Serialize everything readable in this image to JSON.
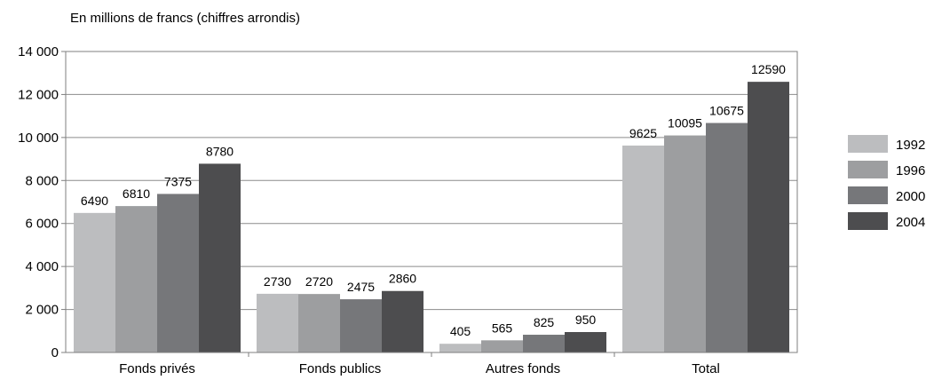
{
  "chart_data": {
    "type": "bar",
    "subtitle": "En millions de francs (chiffres arrondis)",
    "categories": [
      "Fonds privés",
      "Fonds publics",
      "Autres fonds",
      "Total"
    ],
    "series": [
      {
        "name": "1992",
        "values": [
          6490,
          2730,
          405,
          9625
        ],
        "color": "#bcbdbf"
      },
      {
        "name": "1996",
        "values": [
          6810,
          2720,
          565,
          10095
        ],
        "color": "#9d9ea0"
      },
      {
        "name": "2000",
        "values": [
          7375,
          2475,
          825,
          10675
        ],
        "color": "#76777a"
      },
      {
        "name": "2004",
        "values": [
          8780,
          2860,
          950,
          12590
        ],
        "color": "#4d4d4f"
      }
    ],
    "ylim": [
      0,
      14000
    ],
    "yticks": [
      0,
      2000,
      4000,
      6000,
      8000,
      10000,
      12000,
      14000
    ],
    "ytick_labels": [
      "0",
      "2 000",
      "4 000",
      "6 000",
      "8 000",
      "10 000",
      "12 000",
      "14 000"
    ],
    "grid": true,
    "legend_position": "right"
  }
}
